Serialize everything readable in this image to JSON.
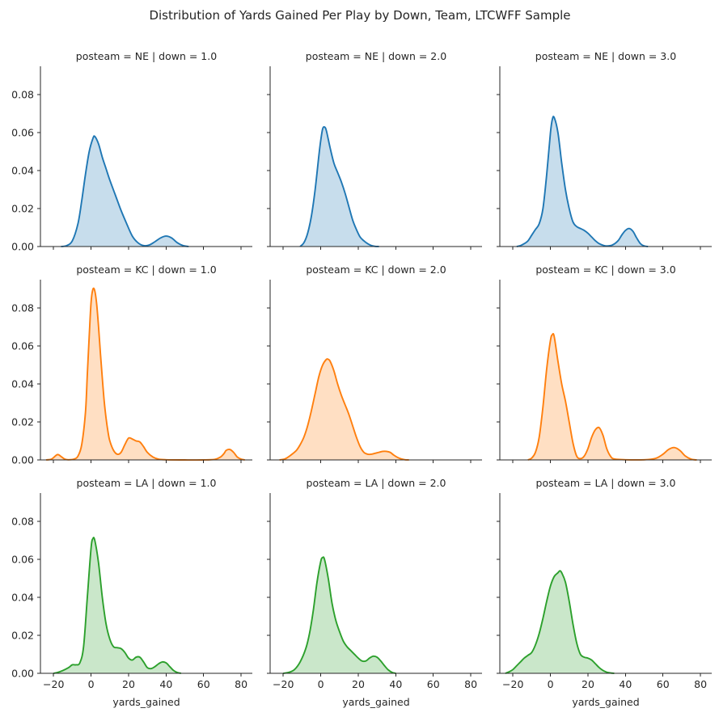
{
  "chart_data": {
    "type": "area",
    "title": "Distribution of Yards Gained Per Play by Down, Team, LTCWFF Sample",
    "xlabel": "yards_gained",
    "ylabel": "",
    "xlim": [
      -27,
      86
    ],
    "ylim": [
      0,
      0.095
    ],
    "x_ticks": [
      -20,
      0,
      20,
      40,
      60,
      80
    ],
    "y_ticks": [
      0.0,
      0.02,
      0.04,
      0.06,
      0.08
    ],
    "x_tick_labels": [
      "−20",
      "0",
      "20",
      "40",
      "60",
      "80"
    ],
    "y_tick_labels": [
      "0.00",
      "0.02",
      "0.04",
      "0.06",
      "0.08"
    ],
    "grid": false,
    "fill_alpha": 0.25,
    "row_var": "posteam",
    "col_var": "down",
    "rows": [
      "NE",
      "KC",
      "LA"
    ],
    "cols": [
      "1.0",
      "2.0",
      "3.0"
    ],
    "row_colors": {
      "NE": "#1f77b4",
      "KC": "#ff7f0e",
      "LA": "#2ca02c"
    },
    "panels": [
      {
        "title": "posteam = NE | down = 1.0",
        "row": "NE",
        "down": "1.0",
        "color": "#1f77b4",
        "x": [
          -16,
          -13,
          -10,
          -7,
          -5,
          -3,
          -1,
          1,
          2,
          4,
          6,
          8,
          10,
          13,
          16,
          19,
          22,
          25,
          28,
          31,
          34,
          37,
          40,
          43,
          46,
          49,
          52
        ],
        "y": [
          0.0,
          0.0005,
          0.003,
          0.012,
          0.024,
          0.038,
          0.05,
          0.057,
          0.058,
          0.054,
          0.047,
          0.041,
          0.035,
          0.027,
          0.019,
          0.012,
          0.0055,
          0.002,
          0.0005,
          0.0008,
          0.0025,
          0.0045,
          0.0055,
          0.0045,
          0.002,
          0.0005,
          0.0
        ]
      },
      {
        "title": "posteam = NE | down = 2.0",
        "row": "NE",
        "down": "2.0",
        "color": "#1f77b4",
        "x": [
          -11,
          -9,
          -7,
          -5,
          -3,
          -1,
          0,
          1,
          2,
          3,
          5,
          7,
          9,
          11,
          13,
          15,
          17,
          19,
          21,
          23,
          25,
          27,
          29,
          31
        ],
        "y": [
          0.0,
          0.002,
          0.007,
          0.016,
          0.03,
          0.048,
          0.056,
          0.062,
          0.063,
          0.061,
          0.052,
          0.044,
          0.039,
          0.034,
          0.028,
          0.021,
          0.014,
          0.009,
          0.005,
          0.003,
          0.0015,
          0.0005,
          0.0001,
          0.0
        ]
      },
      {
        "title": "posteam = NE | down = 3.0",
        "row": "NE",
        "down": "3.0",
        "color": "#1f77b4",
        "x": [
          -18,
          -16,
          -14,
          -12,
          -10,
          -8,
          -6,
          -4,
          -2,
          0,
          1,
          2,
          4,
          6,
          8,
          10,
          12,
          14,
          16,
          18,
          20,
          22,
          24,
          26,
          28,
          30,
          33,
          36,
          38,
          40,
          42,
          44,
          46,
          48,
          50,
          52
        ],
        "y": [
          0.0,
          0.0005,
          0.0015,
          0.003,
          0.006,
          0.009,
          0.012,
          0.02,
          0.038,
          0.06,
          0.067,
          0.068,
          0.06,
          0.044,
          0.03,
          0.02,
          0.013,
          0.0105,
          0.0095,
          0.0085,
          0.007,
          0.005,
          0.003,
          0.0015,
          0.0007,
          0.0003,
          0.0008,
          0.003,
          0.006,
          0.0085,
          0.0095,
          0.008,
          0.0045,
          0.0015,
          0.0003,
          0.0
        ]
      },
      {
        "title": "posteam = KC | down = 1.0",
        "row": "KC",
        "down": "1.0",
        "color": "#ff7f0e",
        "x": [
          -24,
          -21,
          -18,
          -16,
          -14,
          -12,
          -9,
          -7,
          -5,
          -3,
          -2,
          -1,
          0,
          1,
          2,
          3,
          4,
          5,
          6,
          7,
          8,
          9,
          10,
          12,
          14,
          16,
          18,
          20,
          22,
          24,
          26,
          28,
          30,
          33,
          36,
          40,
          50,
          60,
          66,
          69,
          71,
          72,
          74,
          76,
          78,
          80,
          82
        ],
        "y": [
          0.0,
          0.0005,
          0.0028,
          0.0018,
          0.0004,
          0.0001,
          0.0005,
          0.002,
          0.008,
          0.025,
          0.045,
          0.065,
          0.083,
          0.09,
          0.089,
          0.082,
          0.07,
          0.056,
          0.043,
          0.031,
          0.022,
          0.015,
          0.01,
          0.005,
          0.003,
          0.004,
          0.008,
          0.0115,
          0.011,
          0.01,
          0.0095,
          0.007,
          0.004,
          0.0015,
          0.0004,
          0.0001,
          0.0,
          0.0,
          0.0003,
          0.0015,
          0.0035,
          0.005,
          0.0055,
          0.004,
          0.0015,
          0.0004,
          0.0
        ]
      },
      {
        "title": "posteam = KC | down = 2.0",
        "row": "KC",
        "down": "2.0",
        "color": "#ff7f0e",
        "x": [
          -22,
          -19,
          -16,
          -13,
          -11,
          -9,
          -7,
          -5,
          -3,
          -1,
          1,
          3,
          4,
          5,
          7,
          9,
          11,
          13,
          15,
          17,
          19,
          21,
          23,
          25,
          27,
          29,
          31,
          33,
          35,
          37,
          39,
          41,
          43,
          45,
          47
        ],
        "y": [
          0.0,
          0.0006,
          0.0025,
          0.005,
          0.008,
          0.012,
          0.018,
          0.026,
          0.035,
          0.044,
          0.05,
          0.053,
          0.053,
          0.052,
          0.047,
          0.04,
          0.034,
          0.029,
          0.024,
          0.018,
          0.012,
          0.007,
          0.004,
          0.003,
          0.003,
          0.0035,
          0.004,
          0.0045,
          0.0045,
          0.004,
          0.0025,
          0.0013,
          0.0005,
          0.0001,
          0.0
        ]
      },
      {
        "title": "posteam = KC | down = 3.0",
        "row": "KC",
        "down": "3.0",
        "color": "#ff7f0e",
        "x": [
          -12,
          -10,
          -8,
          -6,
          -4,
          -2,
          0,
          1,
          2,
          4,
          6,
          8,
          10,
          12,
          14,
          16,
          18,
          20,
          22,
          24,
          26,
          28,
          30,
          32,
          34,
          40,
          50,
          56,
          60,
          63,
          66,
          69,
          72,
          75,
          78
        ],
        "y": [
          0.0,
          0.001,
          0.004,
          0.012,
          0.028,
          0.048,
          0.063,
          0.066,
          0.065,
          0.052,
          0.04,
          0.031,
          0.02,
          0.009,
          0.002,
          0.0007,
          0.002,
          0.006,
          0.012,
          0.016,
          0.017,
          0.013,
          0.006,
          0.002,
          0.0005,
          0.0001,
          0.0001,
          0.0008,
          0.003,
          0.0055,
          0.0065,
          0.005,
          0.002,
          0.0004,
          0.0
        ]
      },
      {
        "title": "posteam = LA | down = 1.0",
        "row": "LA",
        "down": "1.0",
        "color": "#2ca02c",
        "x": [
          -20,
          -18,
          -15,
          -12,
          -10,
          -8,
          -6,
          -4,
          -2,
          0,
          1,
          2,
          4,
          6,
          8,
          10,
          12,
          14,
          16,
          18,
          20,
          22,
          24,
          26,
          28,
          30,
          32,
          34,
          36,
          38,
          40,
          42,
          44,
          46,
          48
        ],
        "y": [
          0.0,
          0.0004,
          0.0015,
          0.003,
          0.0045,
          0.0045,
          0.0055,
          0.014,
          0.04,
          0.066,
          0.071,
          0.07,
          0.058,
          0.04,
          0.026,
          0.018,
          0.014,
          0.0135,
          0.013,
          0.011,
          0.008,
          0.007,
          0.0085,
          0.0085,
          0.006,
          0.003,
          0.0025,
          0.0035,
          0.005,
          0.006,
          0.0055,
          0.0035,
          0.0015,
          0.0004,
          0.0
        ]
      },
      {
        "title": "posteam = LA | down = 2.0",
        "row": "LA",
        "down": "2.0",
        "color": "#2ca02c",
        "x": [
          -20,
          -17,
          -14,
          -11,
          -8,
          -6,
          -4,
          -2,
          0,
          1,
          2,
          4,
          6,
          8,
          10,
          12,
          14,
          16,
          18,
          20,
          22,
          24,
          26,
          28,
          30,
          32,
          34,
          36,
          38,
          40
        ],
        "y": [
          0.0,
          0.0005,
          0.002,
          0.006,
          0.013,
          0.021,
          0.033,
          0.048,
          0.059,
          0.061,
          0.06,
          0.05,
          0.037,
          0.028,
          0.022,
          0.017,
          0.014,
          0.012,
          0.01,
          0.008,
          0.0065,
          0.0065,
          0.008,
          0.009,
          0.0085,
          0.0065,
          0.004,
          0.0018,
          0.0005,
          0.0
        ]
      },
      {
        "title": "posteam = LA | down = 3.0",
        "row": "LA",
        "down": "3.0",
        "color": "#2ca02c",
        "x": [
          -24,
          -22,
          -20,
          -18,
          -16,
          -14,
          -12,
          -10,
          -8,
          -6,
          -4,
          -2,
          0,
          2,
          4,
          5,
          6,
          8,
          10,
          12,
          14,
          16,
          18,
          20,
          22,
          24,
          26,
          28,
          30,
          32,
          34
        ],
        "y": [
          0.0,
          0.0008,
          0.002,
          0.004,
          0.006,
          0.008,
          0.0095,
          0.011,
          0.015,
          0.021,
          0.029,
          0.038,
          0.046,
          0.051,
          0.053,
          0.054,
          0.053,
          0.048,
          0.038,
          0.026,
          0.016,
          0.01,
          0.0085,
          0.008,
          0.007,
          0.005,
          0.003,
          0.0015,
          0.0006,
          0.0002,
          0.0
        ]
      }
    ]
  }
}
